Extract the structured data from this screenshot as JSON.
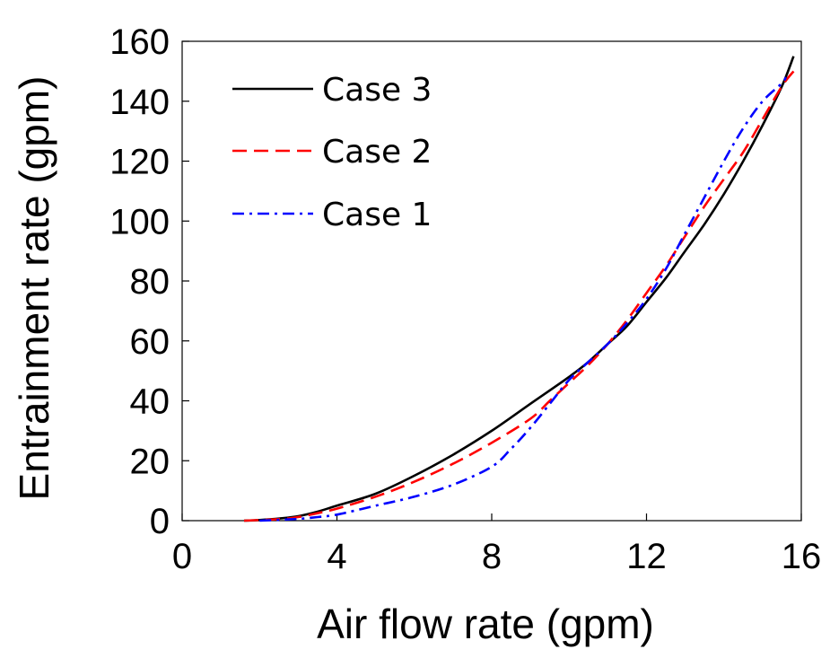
{
  "chart_data": {
    "type": "line",
    "xlabel": "Air flow rate (gpm)",
    "ylabel": "Entrainment rate (gpm)",
    "xlim": [
      0,
      16
    ],
    "ylim": [
      0,
      160
    ],
    "xticks": [
      0,
      4,
      8,
      12,
      16
    ],
    "yticks": [
      0,
      20,
      40,
      60,
      80,
      100,
      120,
      140,
      160
    ],
    "xtick_labels": [
      "0",
      "4",
      "8",
      "12",
      "16"
    ],
    "ytick_labels": [
      "0",
      "20",
      "40",
      "60",
      "80",
      "100",
      "120",
      "140",
      "160"
    ],
    "grid": false,
    "legend_position": "top-left",
    "series": [
      {
        "name": "Case 3",
        "color": "#000000",
        "dash": "solid",
        "x": [
          1.6,
          2.0,
          2.5,
          3.0,
          3.5,
          4.0,
          5.0,
          6.0,
          7.0,
          8.0,
          9.0,
          10.0,
          10.5,
          11.0,
          11.5,
          12.0,
          12.5,
          13.0,
          13.5,
          14.0,
          14.5,
          15.0,
          15.5,
          15.8
        ],
        "y": [
          0,
          0.2,
          0.7,
          1.5,
          3,
          5,
          9,
          15,
          22,
          30,
          39,
          48,
          53,
          59,
          65,
          73,
          81,
          90,
          99,
          109,
          120,
          132,
          145,
          155
        ]
      },
      {
        "name": "Case 2",
        "color": "#ff0000",
        "dash": "dashed",
        "x": [
          1.6,
          2.5,
          3.0,
          3.5,
          4.0,
          5.0,
          6.0,
          7.0,
          8.0,
          9.0,
          9.5,
          10.0,
          10.5,
          11.0,
          11.5,
          12.0,
          12.5,
          13.0,
          13.5,
          14.0,
          14.5,
          15.0,
          15.5,
          15.8
        ],
        "y": [
          0,
          0.5,
          1.2,
          2.5,
          4,
          8,
          13,
          19,
          26,
          34,
          40,
          46,
          52,
          59,
          67,
          76,
          85,
          95,
          105,
          114,
          123,
          134,
          145,
          150
        ]
      },
      {
        "name": "Case 1",
        "color": "#0000ff",
        "dash": "dash-dot",
        "x": [
          2.0,
          3.0,
          3.5,
          4.0,
          5.0,
          6.0,
          7.0,
          8.0,
          8.5,
          9.0,
          9.5,
          10.0,
          10.5,
          11.0,
          11.5,
          12.0,
          12.5,
          13.0,
          13.5,
          14.0,
          14.5,
          15.0,
          15.5,
          15.6
        ],
        "y": [
          0,
          0.6,
          1.2,
          2,
          5,
          8,
          12,
          18,
          24,
          31,
          39,
          47,
          53,
          59,
          66,
          74,
          84,
          96,
          108,
          120,
          131,
          140,
          146,
          148
        ]
      }
    ]
  }
}
